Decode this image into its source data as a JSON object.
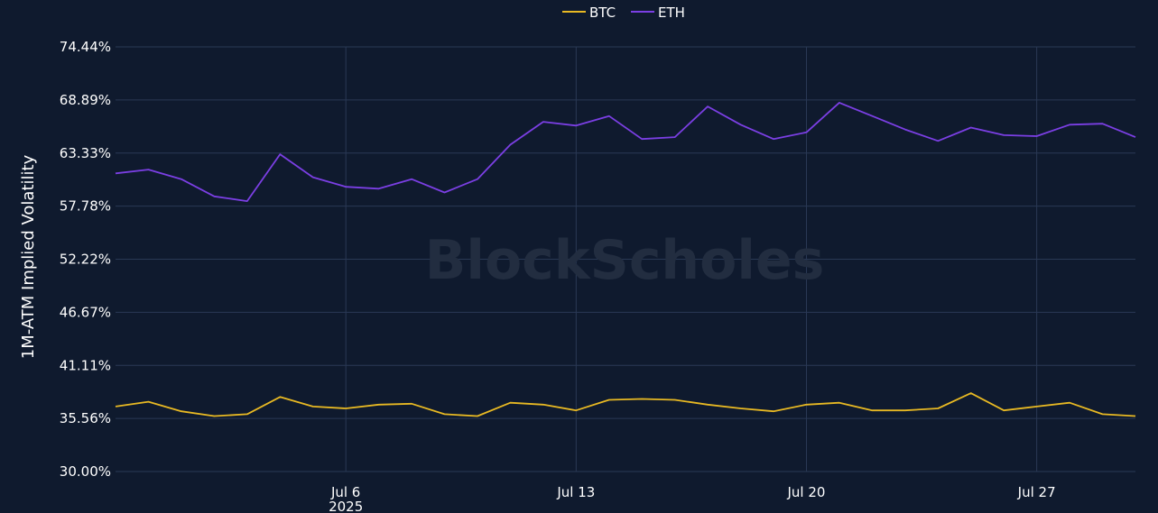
{
  "chart_data": {
    "type": "line",
    "title": "",
    "xlabel": "",
    "ylabel": "1M-ATM Implied Volatility",
    "y_unit": "%",
    "ylim": [
      30.0,
      74.44
    ],
    "y_ticks": [
      "30.00%",
      "35.56%",
      "41.11%",
      "46.67%",
      "52.22%",
      "57.78%",
      "63.33%",
      "68.89%",
      "74.44%"
    ],
    "y_tick_values": [
      30.0,
      35.56,
      41.11,
      46.67,
      52.22,
      57.78,
      63.33,
      68.89,
      74.44
    ],
    "xlim": [
      "2025-06-29",
      "2025-07-30"
    ],
    "x_ticks": [
      {
        "label": "Jul 6",
        "sublabel": "2025",
        "date": "2025-07-06"
      },
      {
        "label": "Jul 13",
        "sublabel": "",
        "date": "2025-07-13"
      },
      {
        "label": "Jul 20",
        "sublabel": "",
        "date": "2025-07-20"
      },
      {
        "label": "Jul 27",
        "sublabel": "",
        "date": "2025-07-27"
      }
    ],
    "grid": true,
    "legend_position": "top-center",
    "watermark": "BlockScholes",
    "series": [
      {
        "name": "BTC",
        "color": "#e8b923",
        "points": [
          [
            "2025-06-29",
            36.8
          ],
          [
            "2025-06-30",
            37.3
          ],
          [
            "2025-07-01",
            36.3
          ],
          [
            "2025-07-02",
            35.8
          ],
          [
            "2025-07-03",
            36.0
          ],
          [
            "2025-07-04",
            37.8
          ],
          [
            "2025-07-05",
            36.8
          ],
          [
            "2025-07-06",
            36.6
          ],
          [
            "2025-07-07",
            37.0
          ],
          [
            "2025-07-08",
            37.1
          ],
          [
            "2025-07-09",
            36.0
          ],
          [
            "2025-07-10",
            35.8
          ],
          [
            "2025-07-11",
            37.2
          ],
          [
            "2025-07-12",
            37.0
          ],
          [
            "2025-07-13",
            36.4
          ],
          [
            "2025-07-14",
            37.5
          ],
          [
            "2025-07-15",
            37.6
          ],
          [
            "2025-07-16",
            37.5
          ],
          [
            "2025-07-17",
            37.0
          ],
          [
            "2025-07-18",
            36.6
          ],
          [
            "2025-07-19",
            36.3
          ],
          [
            "2025-07-20",
            37.0
          ],
          [
            "2025-07-21",
            37.2
          ],
          [
            "2025-07-22",
            36.4
          ],
          [
            "2025-07-23",
            36.4
          ],
          [
            "2025-07-24",
            36.6
          ],
          [
            "2025-07-25",
            38.2
          ],
          [
            "2025-07-26",
            36.4
          ],
          [
            "2025-07-27",
            36.8
          ],
          [
            "2025-07-28",
            37.2
          ],
          [
            "2025-07-29",
            36.0
          ],
          [
            "2025-07-30",
            35.8
          ]
        ]
      },
      {
        "name": "ETH",
        "color": "#7b3fe4",
        "points": [
          [
            "2025-06-29",
            61.2
          ],
          [
            "2025-06-30",
            61.6
          ],
          [
            "2025-07-01",
            60.6
          ],
          [
            "2025-07-02",
            58.8
          ],
          [
            "2025-07-03",
            58.3
          ],
          [
            "2025-07-04",
            63.2
          ],
          [
            "2025-07-05",
            60.8
          ],
          [
            "2025-07-06",
            59.8
          ],
          [
            "2025-07-07",
            59.6
          ],
          [
            "2025-07-08",
            60.6
          ],
          [
            "2025-07-09",
            59.2
          ],
          [
            "2025-07-10",
            60.6
          ],
          [
            "2025-07-11",
            64.2
          ],
          [
            "2025-07-12",
            66.6
          ],
          [
            "2025-07-13",
            66.2
          ],
          [
            "2025-07-14",
            67.2
          ],
          [
            "2025-07-15",
            64.8
          ],
          [
            "2025-07-16",
            65.0
          ],
          [
            "2025-07-17",
            68.2
          ],
          [
            "2025-07-18",
            66.3
          ],
          [
            "2025-07-19",
            64.8
          ],
          [
            "2025-07-20",
            65.5
          ],
          [
            "2025-07-21",
            68.6
          ],
          [
            "2025-07-22",
            67.2
          ],
          [
            "2025-07-23",
            65.8
          ],
          [
            "2025-07-24",
            64.6
          ],
          [
            "2025-07-25",
            66.0
          ],
          [
            "2025-07-26",
            65.2
          ],
          [
            "2025-07-27",
            65.1
          ],
          [
            "2025-07-28",
            66.3
          ],
          [
            "2025-07-29",
            66.4
          ],
          [
            "2025-07-30",
            65.0
          ]
        ]
      }
    ]
  }
}
